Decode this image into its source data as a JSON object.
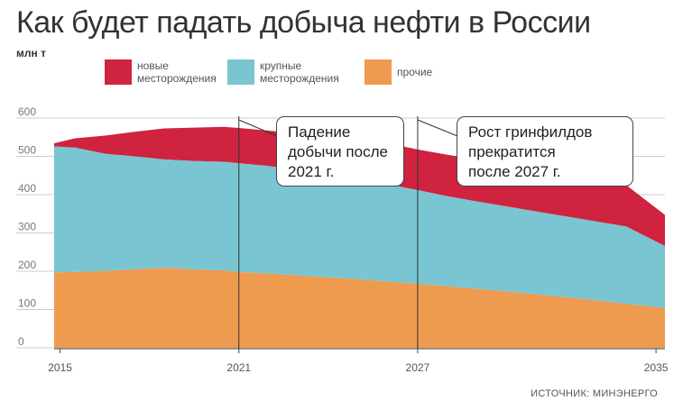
{
  "title": "Как будет падать добыча нефти в России",
  "unit_label": "млн т",
  "source": "ИСТОЧНИК: МИНЭНЕРГО",
  "colors": {
    "new": "#cf2340",
    "large": "#79c6d2",
    "other": "#ee9a4f",
    "axis": "#444444",
    "grid": "#bbbbbb"
  },
  "legend": [
    {
      "label": "новые\nместорождения",
      "color": "#cf2340"
    },
    {
      "label": "крупные\nместорождения",
      "color": "#79c6d2"
    },
    {
      "label": "прочие",
      "color": "#ee9a4f"
    }
  ],
  "callouts": [
    {
      "text": "Падение\nдобычи после\n2021 г."
    },
    {
      "text": "Рост гринфилдов\nпрекратится\nпосле 2027 г."
    }
  ],
  "chart_data": {
    "type": "area",
    "stacked": true,
    "x": [
      2014.8,
      2015.5,
      2016.5,
      2017.5,
      2018.5,
      2019.5,
      2020.5,
      2021,
      2022,
      2023,
      2024,
      2025,
      2026,
      2027,
      2028,
      2029,
      2030,
      2031,
      2032,
      2033,
      2034,
      2035.3
    ],
    "series": [
      {
        "name": "прочие",
        "values": [
          197,
          198,
          201,
          205,
          209,
          205,
          202,
          198,
          194,
          189,
          184,
          179,
          173,
          167,
          161,
          154,
          147,
          140,
          132,
          124,
          115,
          104
        ]
      },
      {
        "name": "крупные месторождения",
        "values": [
          329,
          325,
          306,
          295,
          283,
          283,
          284,
          284,
          281,
          274,
          268,
          262,
          254,
          245,
          235,
          228,
          222,
          216,
          211,
          206,
          202,
          162
        ]
      },
      {
        "name": "новые месторождения",
        "values": [
          8,
          24,
          47,
          64,
          81,
          87,
          91,
          92,
          92,
          97,
          102,
          106,
          107,
          106,
          108,
          110,
          111,
          111,
          111,
          110,
          108,
          81
        ]
      }
    ],
    "totals": [
      534,
      547,
      554,
      564,
      573,
      575,
      577,
      574,
      567,
      560,
      554,
      547,
      534,
      518,
      504,
      492,
      480,
      467,
      454,
      440,
      425,
      347
    ],
    "x_ticks": [
      2015,
      2021,
      2027,
      2035
    ],
    "x_tick_labels": [
      "2015",
      "2021",
      "2027",
      "2035"
    ],
    "y_ticks": [
      0,
      100,
      200,
      300,
      400,
      500,
      600
    ],
    "y_tick_labels": [
      "0",
      "100",
      "200",
      "300",
      "400",
      "500",
      "600"
    ],
    "ylim": [
      0,
      600
    ],
    "xlim": [
      2014.8,
      2035.3
    ],
    "markers": [
      2021,
      2027
    ],
    "grid": true
  }
}
